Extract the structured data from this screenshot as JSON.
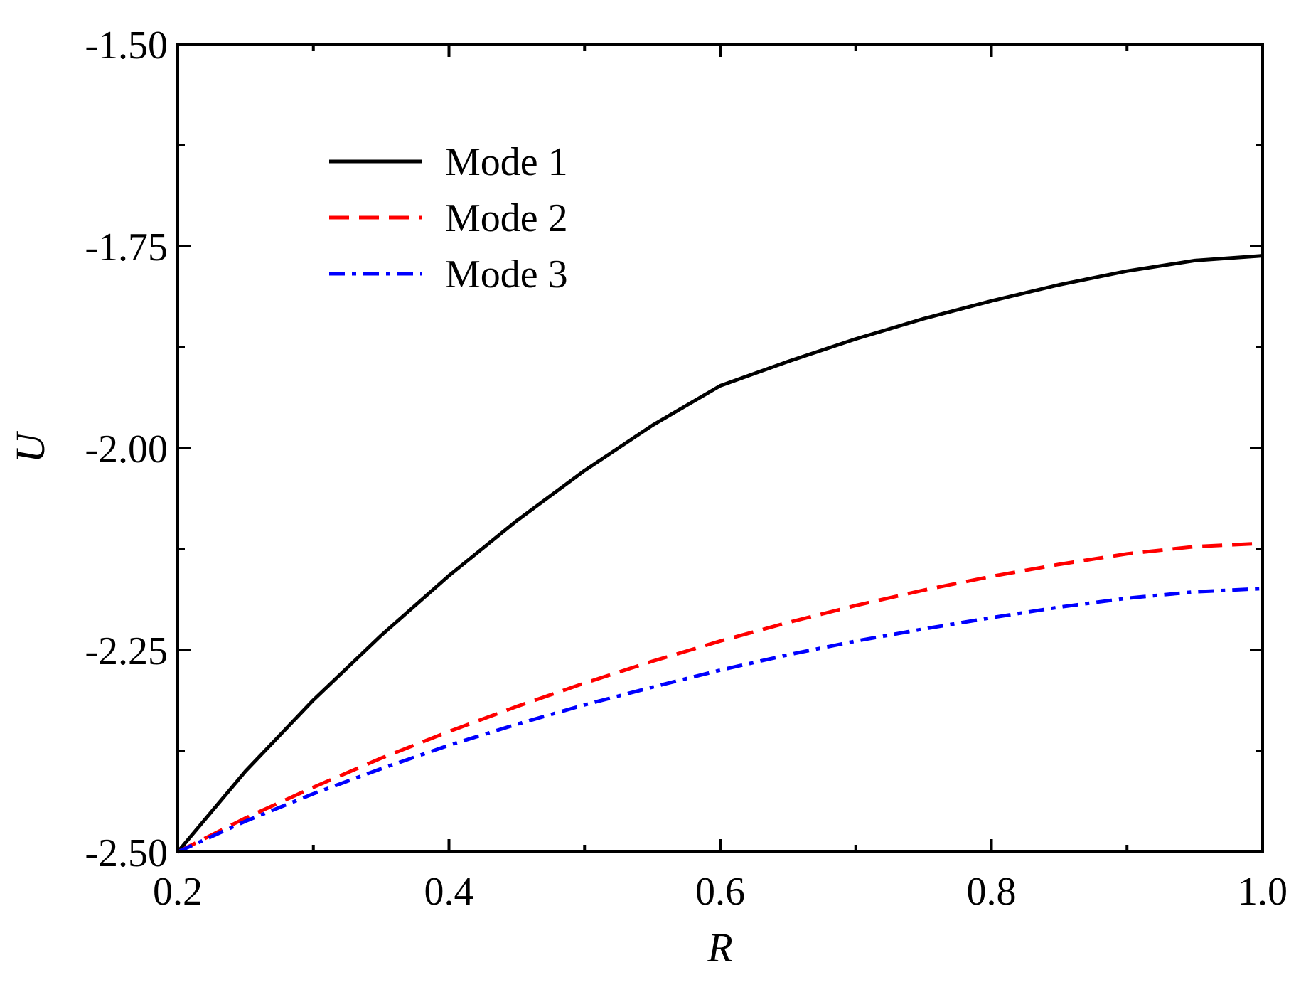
{
  "chart_data": {
    "type": "line",
    "title": "",
    "xlabel": "R",
    "ylabel": "U",
    "xlim": [
      0.2,
      1.0
    ],
    "ylim": [
      -2.5,
      -1.5
    ],
    "x_ticks": [
      0.2,
      0.4,
      0.6,
      0.8,
      1.0
    ],
    "x_tick_labels": [
      "0.2",
      "0.4",
      "0.6",
      "0.8",
      "1.0"
    ],
    "y_ticks": [
      -2.5,
      -2.25,
      -2.0,
      -1.75,
      -1.5
    ],
    "y_tick_labels": [
      "-2.50",
      "-2.25",
      "-2.00",
      "-1.75",
      "-1.50"
    ],
    "grid": false,
    "legend_position": "top-left",
    "series": [
      {
        "name": "Mode 1",
        "color": "#000000",
        "style": "solid",
        "x": [
          0.2,
          0.25,
          0.3,
          0.35,
          0.4,
          0.45,
          0.5,
          0.55,
          0.6,
          0.65,
          0.7,
          0.75,
          0.8,
          0.85,
          0.9,
          0.95,
          1.0
        ],
        "y": [
          -2.5,
          -2.4,
          -2.312,
          -2.232,
          -2.158,
          -2.09,
          -2.028,
          -1.972,
          -1.923,
          -1.893,
          -1.865,
          -1.84,
          -1.818,
          -1.798,
          -1.781,
          -1.768,
          -1.762
        ]
      },
      {
        "name": "Mode 2",
        "color": "#ff0000",
        "style": "dashed",
        "x": [
          0.2,
          0.25,
          0.3,
          0.35,
          0.4,
          0.45,
          0.5,
          0.55,
          0.6,
          0.65,
          0.7,
          0.75,
          0.8,
          0.85,
          0.9,
          0.95,
          1.0
        ],
        "y": [
          -2.5,
          -2.458,
          -2.42,
          -2.384,
          -2.351,
          -2.32,
          -2.291,
          -2.264,
          -2.239,
          -2.216,
          -2.195,
          -2.176,
          -2.159,
          -2.144,
          -2.131,
          -2.122,
          -2.118
        ]
      },
      {
        "name": "Mode 3",
        "color": "#0000ff",
        "style": "dashdot",
        "x": [
          0.2,
          0.25,
          0.3,
          0.35,
          0.4,
          0.45,
          0.5,
          0.55,
          0.6,
          0.65,
          0.7,
          0.75,
          0.8,
          0.85,
          0.9,
          0.95,
          1.0
        ],
        "y": [
          -2.5,
          -2.462,
          -2.428,
          -2.397,
          -2.368,
          -2.342,
          -2.318,
          -2.296,
          -2.275,
          -2.256,
          -2.239,
          -2.224,
          -2.21,
          -2.197,
          -2.186,
          -2.178,
          -2.174
        ]
      }
    ]
  }
}
